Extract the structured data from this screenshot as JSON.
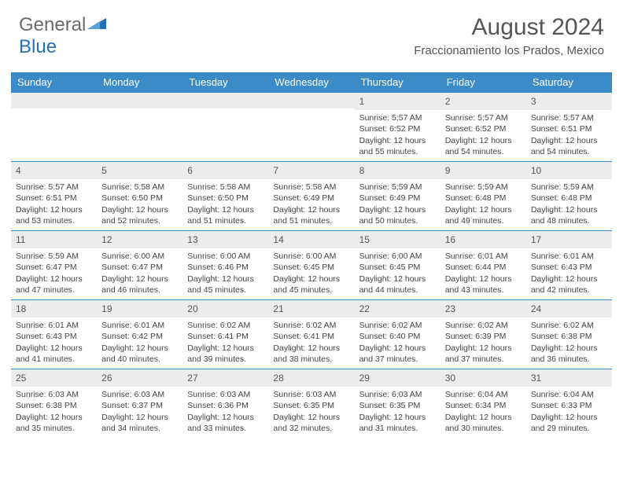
{
  "brand": {
    "part1": "General",
    "part2": "Blue"
  },
  "title": "August 2024",
  "location": "Fraccionamiento los Prados, Mexico",
  "header_bg": "#3b8bc9",
  "daynum_bg": "#ececec",
  "day_names": [
    "Sunday",
    "Monday",
    "Tuesday",
    "Wednesday",
    "Thursday",
    "Friday",
    "Saturday"
  ],
  "weeks": [
    [
      {
        "n": "",
        "sr": "",
        "ss": "",
        "dl": ""
      },
      {
        "n": "",
        "sr": "",
        "ss": "",
        "dl": ""
      },
      {
        "n": "",
        "sr": "",
        "ss": "",
        "dl": ""
      },
      {
        "n": "",
        "sr": "",
        "ss": "",
        "dl": ""
      },
      {
        "n": "1",
        "sr": "Sunrise: 5:57 AM",
        "ss": "Sunset: 6:52 PM",
        "dl": "Daylight: 12 hours and 55 minutes."
      },
      {
        "n": "2",
        "sr": "Sunrise: 5:57 AM",
        "ss": "Sunset: 6:52 PM",
        "dl": "Daylight: 12 hours and 54 minutes."
      },
      {
        "n": "3",
        "sr": "Sunrise: 5:57 AM",
        "ss": "Sunset: 6:51 PM",
        "dl": "Daylight: 12 hours and 54 minutes."
      }
    ],
    [
      {
        "n": "4",
        "sr": "Sunrise: 5:57 AM",
        "ss": "Sunset: 6:51 PM",
        "dl": "Daylight: 12 hours and 53 minutes."
      },
      {
        "n": "5",
        "sr": "Sunrise: 5:58 AM",
        "ss": "Sunset: 6:50 PM",
        "dl": "Daylight: 12 hours and 52 minutes."
      },
      {
        "n": "6",
        "sr": "Sunrise: 5:58 AM",
        "ss": "Sunset: 6:50 PM",
        "dl": "Daylight: 12 hours and 51 minutes."
      },
      {
        "n": "7",
        "sr": "Sunrise: 5:58 AM",
        "ss": "Sunset: 6:49 PM",
        "dl": "Daylight: 12 hours and 51 minutes."
      },
      {
        "n": "8",
        "sr": "Sunrise: 5:59 AM",
        "ss": "Sunset: 6:49 PM",
        "dl": "Daylight: 12 hours and 50 minutes."
      },
      {
        "n": "9",
        "sr": "Sunrise: 5:59 AM",
        "ss": "Sunset: 6:48 PM",
        "dl": "Daylight: 12 hours and 49 minutes."
      },
      {
        "n": "10",
        "sr": "Sunrise: 5:59 AM",
        "ss": "Sunset: 6:48 PM",
        "dl": "Daylight: 12 hours and 48 minutes."
      }
    ],
    [
      {
        "n": "11",
        "sr": "Sunrise: 5:59 AM",
        "ss": "Sunset: 6:47 PM",
        "dl": "Daylight: 12 hours and 47 minutes."
      },
      {
        "n": "12",
        "sr": "Sunrise: 6:00 AM",
        "ss": "Sunset: 6:47 PM",
        "dl": "Daylight: 12 hours and 46 minutes."
      },
      {
        "n": "13",
        "sr": "Sunrise: 6:00 AM",
        "ss": "Sunset: 6:46 PM",
        "dl": "Daylight: 12 hours and 45 minutes."
      },
      {
        "n": "14",
        "sr": "Sunrise: 6:00 AM",
        "ss": "Sunset: 6:45 PM",
        "dl": "Daylight: 12 hours and 45 minutes."
      },
      {
        "n": "15",
        "sr": "Sunrise: 6:00 AM",
        "ss": "Sunset: 6:45 PM",
        "dl": "Daylight: 12 hours and 44 minutes."
      },
      {
        "n": "16",
        "sr": "Sunrise: 6:01 AM",
        "ss": "Sunset: 6:44 PM",
        "dl": "Daylight: 12 hours and 43 minutes."
      },
      {
        "n": "17",
        "sr": "Sunrise: 6:01 AM",
        "ss": "Sunset: 6:43 PM",
        "dl": "Daylight: 12 hours and 42 minutes."
      }
    ],
    [
      {
        "n": "18",
        "sr": "Sunrise: 6:01 AM",
        "ss": "Sunset: 6:43 PM",
        "dl": "Daylight: 12 hours and 41 minutes."
      },
      {
        "n": "19",
        "sr": "Sunrise: 6:01 AM",
        "ss": "Sunset: 6:42 PM",
        "dl": "Daylight: 12 hours and 40 minutes."
      },
      {
        "n": "20",
        "sr": "Sunrise: 6:02 AM",
        "ss": "Sunset: 6:41 PM",
        "dl": "Daylight: 12 hours and 39 minutes."
      },
      {
        "n": "21",
        "sr": "Sunrise: 6:02 AM",
        "ss": "Sunset: 6:41 PM",
        "dl": "Daylight: 12 hours and 38 minutes."
      },
      {
        "n": "22",
        "sr": "Sunrise: 6:02 AM",
        "ss": "Sunset: 6:40 PM",
        "dl": "Daylight: 12 hours and 37 minutes."
      },
      {
        "n": "23",
        "sr": "Sunrise: 6:02 AM",
        "ss": "Sunset: 6:39 PM",
        "dl": "Daylight: 12 hours and 37 minutes."
      },
      {
        "n": "24",
        "sr": "Sunrise: 6:02 AM",
        "ss": "Sunset: 6:38 PM",
        "dl": "Daylight: 12 hours and 36 minutes."
      }
    ],
    [
      {
        "n": "25",
        "sr": "Sunrise: 6:03 AM",
        "ss": "Sunset: 6:38 PM",
        "dl": "Daylight: 12 hours and 35 minutes."
      },
      {
        "n": "26",
        "sr": "Sunrise: 6:03 AM",
        "ss": "Sunset: 6:37 PM",
        "dl": "Daylight: 12 hours and 34 minutes."
      },
      {
        "n": "27",
        "sr": "Sunrise: 6:03 AM",
        "ss": "Sunset: 6:36 PM",
        "dl": "Daylight: 12 hours and 33 minutes."
      },
      {
        "n": "28",
        "sr": "Sunrise: 6:03 AM",
        "ss": "Sunset: 6:35 PM",
        "dl": "Daylight: 12 hours and 32 minutes."
      },
      {
        "n": "29",
        "sr": "Sunrise: 6:03 AM",
        "ss": "Sunset: 6:35 PM",
        "dl": "Daylight: 12 hours and 31 minutes."
      },
      {
        "n": "30",
        "sr": "Sunrise: 6:04 AM",
        "ss": "Sunset: 6:34 PM",
        "dl": "Daylight: 12 hours and 30 minutes."
      },
      {
        "n": "31",
        "sr": "Sunrise: 6:04 AM",
        "ss": "Sunset: 6:33 PM",
        "dl": "Daylight: 12 hours and 29 minutes."
      }
    ]
  ]
}
